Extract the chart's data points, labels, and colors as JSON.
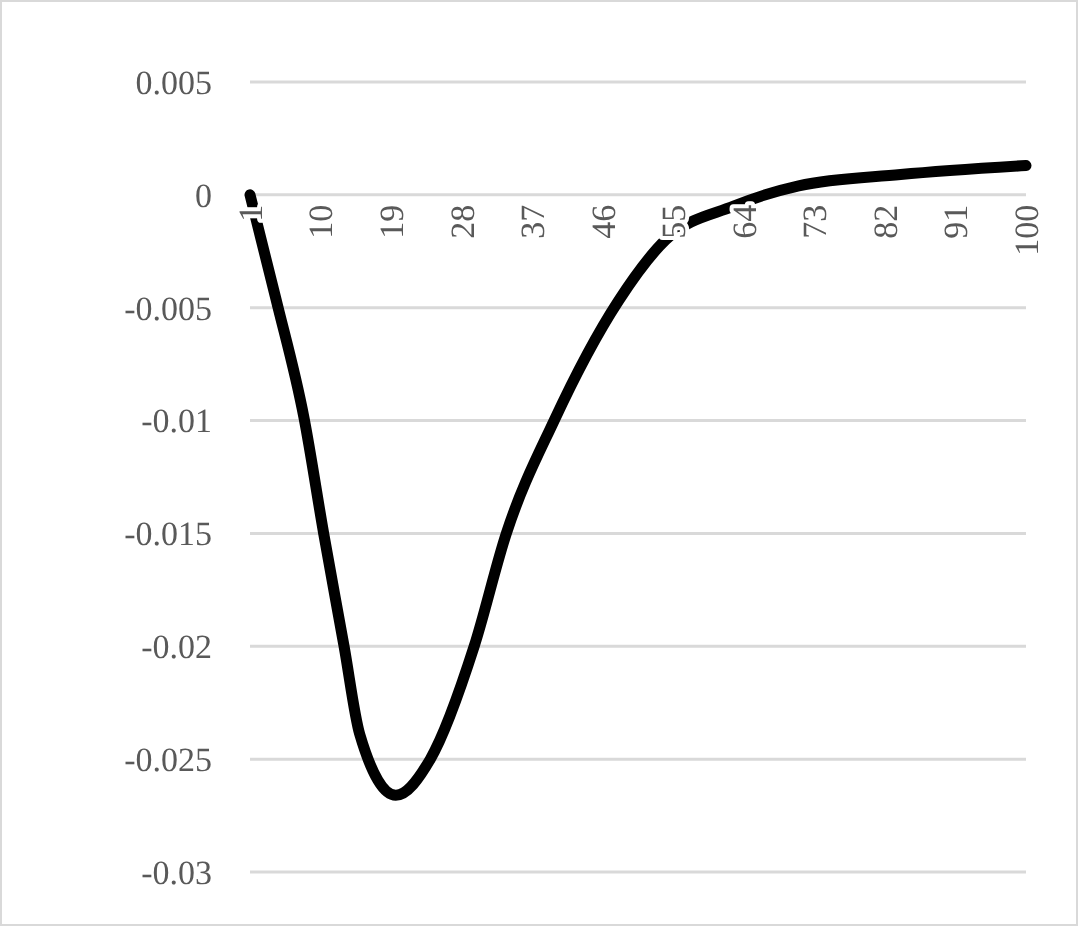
{
  "chart_data": {
    "type": "line",
    "x": [
      1,
      4.3,
      7.9,
      10.4,
      13,
      15,
      19.6,
      24,
      29.6,
      33.7,
      39.8,
      48,
      54,
      62.7,
      71,
      84,
      100
    ],
    "series": [
      {
        "color": "#000000",
        "values": [
          0,
          -0.0046,
          -0.0099,
          -0.015,
          -0.02,
          -0.0239,
          -0.0266,
          -0.025,
          -0.02,
          -0.015,
          -0.01,
          -0.0047,
          -0.002,
          -0.0005,
          0.0004,
          0.0009,
          0.0013
        ]
      }
    ],
    "xlim": [
      1,
      100
    ],
    "xticks": [
      1,
      10,
      19,
      28,
      37,
      46,
      55,
      64,
      73,
      82,
      91,
      100
    ],
    "ylim": [
      -0.03,
      0.005
    ],
    "yticks": [
      {
        "value": 0.005,
        "label": "0.005"
      },
      {
        "value": 0,
        "label": "0"
      },
      {
        "value": -0.005,
        "label": "-0.005"
      },
      {
        "value": -0.01,
        "label": "-0.01"
      },
      {
        "value": -0.015,
        "label": "-0.015"
      },
      {
        "value": -0.02,
        "label": "-0.02"
      },
      {
        "value": -0.025,
        "label": "-0.025"
      },
      {
        "value": -0.03,
        "label": "-0.03"
      }
    ],
    "grid": "y",
    "marker": "none",
    "line_style": "solid"
  }
}
